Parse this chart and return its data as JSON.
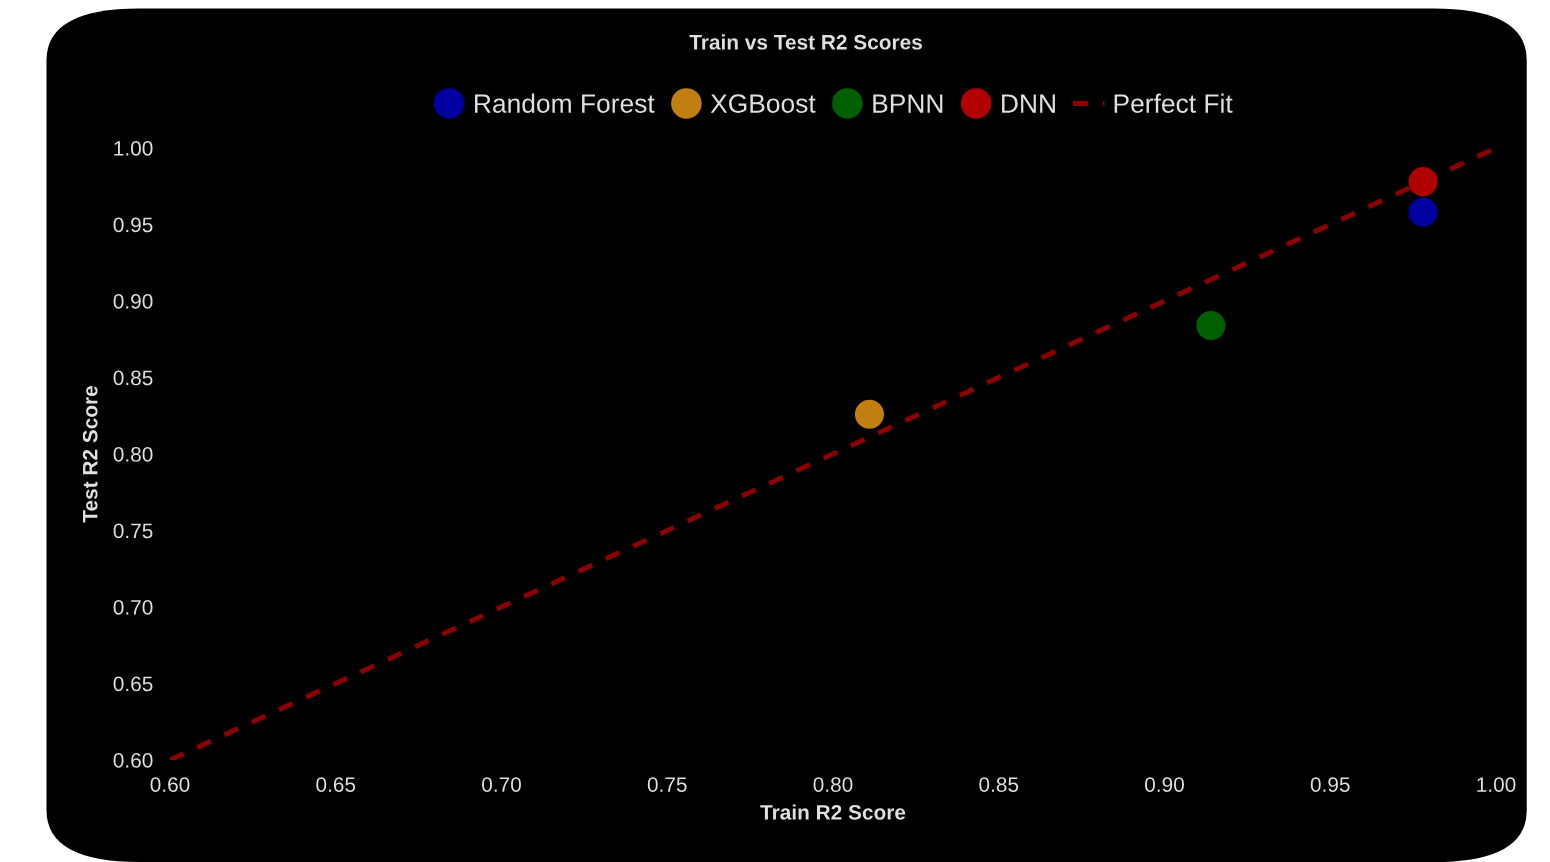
{
  "chart_data": {
    "type": "scatter",
    "title": "Train vs Test R2 Scores",
    "xlabel": "Train R2 Score",
    "ylabel": "Test R2 Score",
    "series": [
      {
        "name": "Random Forest",
        "color": "#0000a0",
        "x": [
          0.978
        ],
        "values": [
          0.958
        ]
      },
      {
        "name": "XGBoost",
        "color": "#c07f10",
        "x": [
          0.811
        ],
        "values": [
          0.826
        ]
      },
      {
        "name": "BPNN",
        "color": "#006000",
        "x": [
          0.914
        ],
        "values": [
          0.884
        ]
      },
      {
        "name": "DNN",
        "color": "#b00000",
        "x": [
          0.978
        ],
        "values": [
          0.978
        ]
      },
      {
        "name": "Perfect Fit",
        "type": "line",
        "color": "#8b0000",
        "line_style": "dashed",
        "marker": "none",
        "x": [
          0.6,
          1.0
        ],
        "values": [
          0.6,
          1.0
        ]
      }
    ],
    "marker": "circle",
    "xlim": [
      0.6,
      1.0
    ],
    "xticks": [
      {
        "value": 0.6,
        "label": "0.60"
      },
      {
        "value": 0.65,
        "label": "0.65"
      },
      {
        "value": 0.7,
        "label": "0.70"
      },
      {
        "value": 0.75,
        "label": "0.75"
      },
      {
        "value": 0.8,
        "label": "0.80"
      },
      {
        "value": 0.85,
        "label": "0.85"
      },
      {
        "value": 0.9,
        "label": "0.90"
      },
      {
        "value": 0.95,
        "label": "0.95"
      },
      {
        "value": 1.0,
        "label": "1.00"
      }
    ],
    "ylim": [
      0.6,
      1.0
    ],
    "yticks": [
      {
        "value": 0.6,
        "label": "0.60"
      },
      {
        "value": 0.65,
        "label": "0.65"
      },
      {
        "value": 0.7,
        "label": "0.70"
      },
      {
        "value": 0.75,
        "label": "0.75"
      },
      {
        "value": 0.8,
        "label": "0.80"
      },
      {
        "value": 0.85,
        "label": "0.85"
      },
      {
        "value": 0.9,
        "label": "0.90"
      },
      {
        "value": 0.95,
        "label": "0.95"
      },
      {
        "value": 1.0,
        "label": "1.00"
      }
    ],
    "grid": false,
    "legend": "top"
  }
}
